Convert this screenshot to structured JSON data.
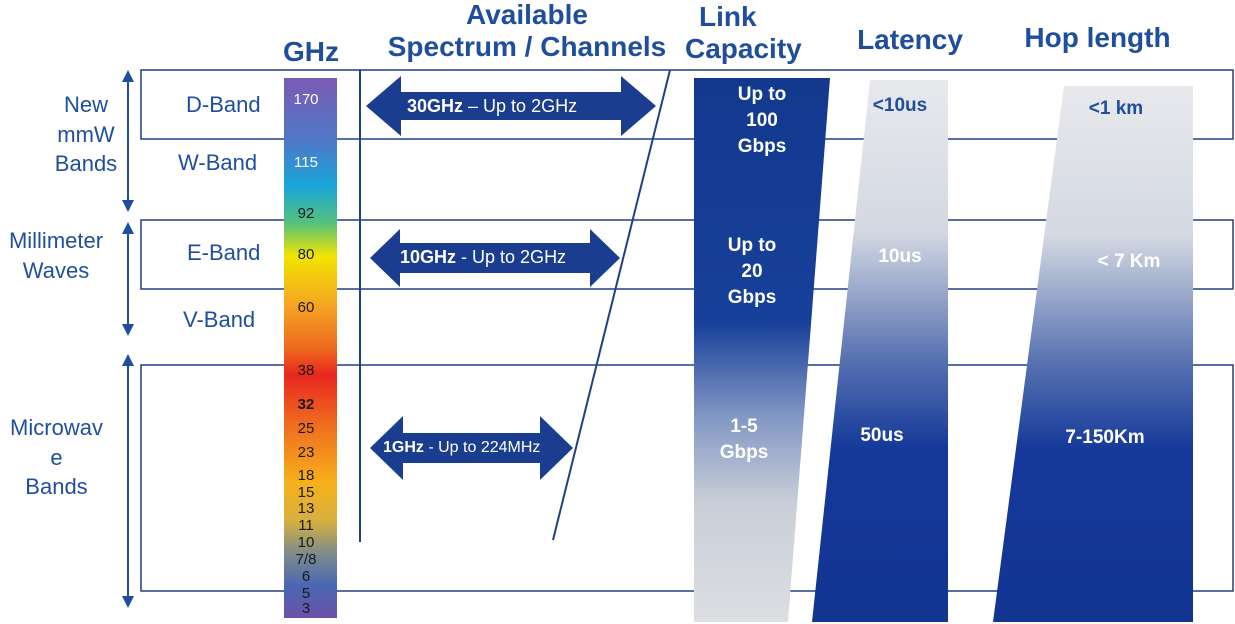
{
  "headers": {
    "ghz": "GHz",
    "spectrum_line1": "Available",
    "spectrum_line2": "Spectrum / Channels",
    "capacity_line1": "Link",
    "capacity_line2": "Capacity",
    "latency": "Latency",
    "hop": "Hop length"
  },
  "groups": {
    "new_mmw": [
      "New",
      "mmW",
      "Bands"
    ],
    "millimeter": [
      "Millimeter",
      "Waves"
    ],
    "microwave": [
      "Microwav",
      "e",
      "Bands"
    ]
  },
  "bands": {
    "d_band": "D-Band",
    "w_band": "W-Band",
    "e_band": "E-Band",
    "v_band": "V-Band"
  },
  "frequencies": {
    "f170": "170",
    "f115": "115",
    "f92": "92",
    "f80": "80",
    "f60": "60",
    "f38": "38",
    "f32": "32",
    "f25": "25",
    "f23": "23",
    "f18": "18",
    "f15": "15",
    "f13": "13",
    "f11": "11",
    "f10": "10",
    "f78": "7/8",
    "f6": "6",
    "f5": "5",
    "f3": "3"
  },
  "spectrum": {
    "d_band_bold": "30GHz",
    "d_band_rest": " – Up to 2GHz",
    "e_band_bold": "10GHz",
    "e_band_rest": " - Up to 2GHz",
    "microwave_bold": "1GHz",
    "microwave_rest": " - Up to 224MHz"
  },
  "capacity": {
    "new_mmw": [
      "Up to",
      "100",
      "Gbps"
    ],
    "millimeter": [
      "Up to",
      "20",
      "Gbps"
    ],
    "microwave": [
      "1-5",
      "Gbps"
    ]
  },
  "latency": {
    "new_mmw": "<10us",
    "millimeter": "10us",
    "microwave": "50us"
  },
  "hop": {
    "new_mmw": "<1 km",
    "millimeter": "< 7 Km",
    "microwave": "7-150Km"
  },
  "colors": {
    "brand_blue": "#1f4e9c",
    "dark_blue": "#1a3d8f",
    "light_gray": "#d6d9de"
  }
}
